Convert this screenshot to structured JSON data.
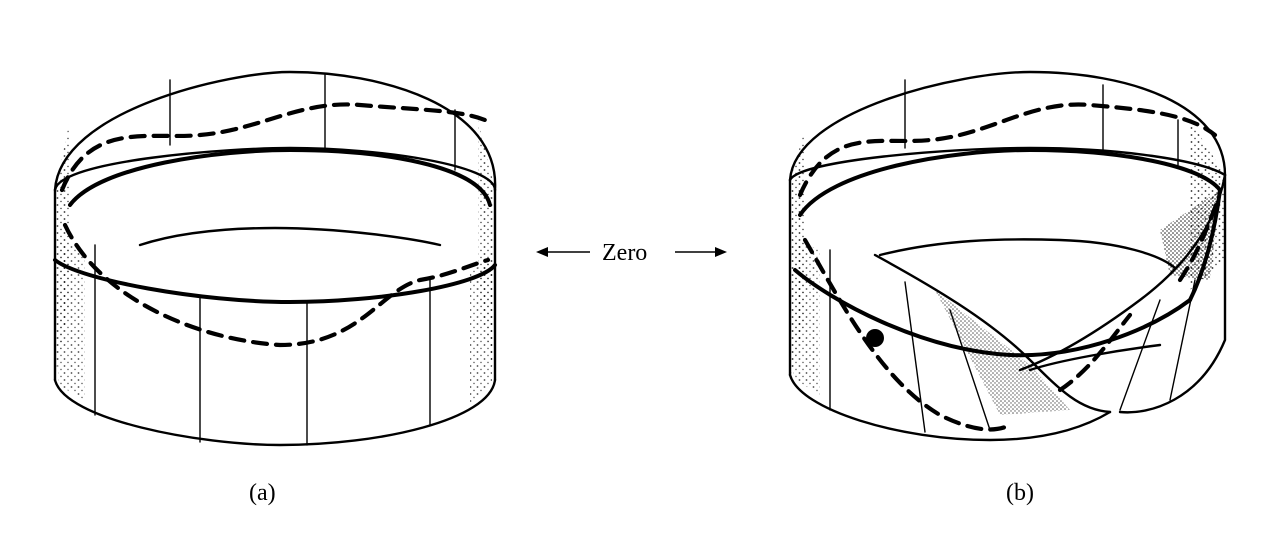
{
  "labels": {
    "panel_a": "(a)",
    "panel_b": "(b)",
    "center": "Zero"
  },
  "colors": {
    "ink": "#000000",
    "background": "#ffffff"
  }
}
